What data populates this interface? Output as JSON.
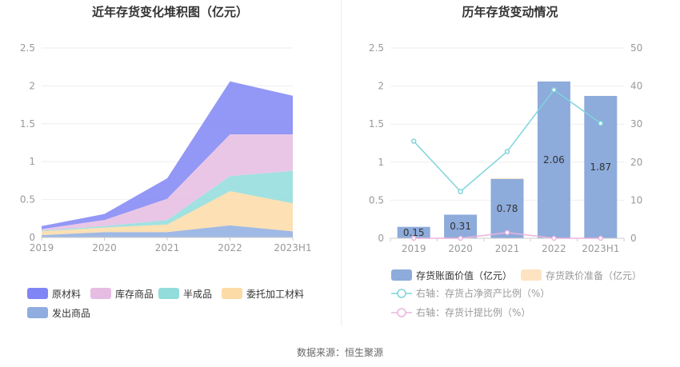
{
  "titles": {
    "left": "近年存货变化堆积图（亿元）",
    "right": "历年存货变动情况"
  },
  "source": "数据来源：恒生聚源",
  "chart_data": [
    {
      "type": "area",
      "stacked": true,
      "title": "近年存货变化堆积图（亿元）",
      "categories": [
        "2019",
        "2020",
        "2021",
        "2022",
        "2023H1"
      ],
      "ylim": [
        0,
        2.5
      ],
      "yticks": [
        "0",
        "0.5",
        "1",
        "1.5",
        "2",
        "2.5"
      ],
      "grid": true,
      "legend_position": "bottom-left",
      "series": [
        {
          "name": "原材料",
          "color": "#8085f5",
          "values": [
            0.04,
            0.08,
            0.27,
            0.7,
            0.51
          ]
        },
        {
          "name": "库存商品",
          "color": "#e6bce2",
          "values": [
            0.02,
            0.08,
            0.28,
            0.55,
            0.48
          ]
        },
        {
          "name": "半成品",
          "color": "#92dcdc",
          "values": [
            0.01,
            0.02,
            0.06,
            0.2,
            0.43
          ]
        },
        {
          "name": "委托加工材料",
          "color": "#fddba6",
          "values": [
            0.05,
            0.06,
            0.1,
            0.45,
            0.37
          ]
        },
        {
          "name": "发出商品",
          "color": "#8faddf",
          "values": [
            0.03,
            0.07,
            0.07,
            0.16,
            0.08
          ]
        }
      ]
    },
    {
      "type": "bar",
      "title": "历年存货变动情况",
      "categories": [
        "2019",
        "2020",
        "2021",
        "2022",
        "2023H1"
      ],
      "ylim": [
        0,
        2.5
      ],
      "yticks": [
        "0",
        "0.5",
        "1",
        "1.5",
        "2",
        "2.5"
      ],
      "y2lim": [
        0,
        50
      ],
      "y2ticks": [
        "0",
        "10",
        "20",
        "30",
        "40",
        "50"
      ],
      "grid": true,
      "legend_position": "bottom",
      "bars": [
        {
          "name": "存货账面价值（亿元）",
          "color": "#8dabdb",
          "values": [
            0.15,
            0.31,
            0.78,
            2.06,
            1.87
          ],
          "labels": [
            "0.15",
            "0.31",
            "0.78",
            "2.06",
            "1.87"
          ]
        },
        {
          "name": "存货跌价准备（亿元）",
          "color": "#fde3c2",
          "values": [
            0,
            0,
            0.01,
            0,
            0
          ]
        }
      ],
      "lines": [
        {
          "name": "右轴：存货占净资产比例（%）",
          "color": "#7fd4dc",
          "axis": "right",
          "values": [
            25.5,
            12.3,
            22.8,
            39.0,
            30.2
          ]
        },
        {
          "name": "右轴：存货计提比例（%）",
          "color": "#ecb3de",
          "axis": "right",
          "values": [
            0,
            0,
            1.5,
            0,
            0
          ]
        }
      ]
    }
  ]
}
